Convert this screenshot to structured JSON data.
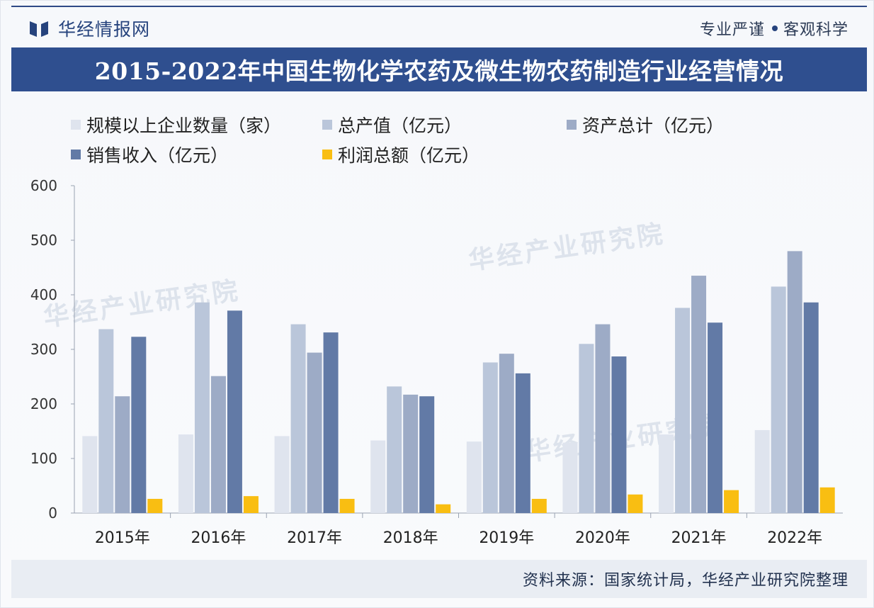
{
  "header": {
    "brand_name": "华经情报网",
    "slogan_left": "专业严谨",
    "slogan_right": "客观科学"
  },
  "watermark_text": "华经产业研究院",
  "source": "资料来源：国家统计局，华经产业研究院整理",
  "colors": {
    "brand": "#26437d",
    "title_bar": "#2f4f8f",
    "series": [
      "#dfe4ee",
      "#bac6da",
      "#9dabc6",
      "#627aa6",
      "#f9be12"
    ]
  },
  "chart_data": {
    "type": "bar",
    "title": "2015-2022年中国生物化学农药及微生物农药制造行业经营情况",
    "categories": [
      "2015年",
      "2016年",
      "2017年",
      "2018年",
      "2019年",
      "2020年",
      "2021年",
      "2022年"
    ],
    "series": [
      {
        "name": "规模以上企业数量（家）",
        "values": [
          141,
          144,
          141,
          133,
          131,
          129,
          144,
          152
        ]
      },
      {
        "name": "总产值（亿元）",
        "values": [
          337,
          386,
          346,
          232,
          276,
          310,
          376,
          415
        ]
      },
      {
        "name": "资产总计（亿元）",
        "values": [
          214,
          251,
          294,
          217,
          292,
          346,
          435,
          480
        ]
      },
      {
        "name": "销售收入（亿元）",
        "values": [
          323,
          371,
          331,
          214,
          256,
          287,
          349,
          386
        ]
      },
      {
        "name": "利润总额（亿元）",
        "values": [
          26,
          31,
          26,
          16,
          26,
          34,
          42,
          47
        ]
      }
    ],
    "yticks": [
      0,
      100,
      200,
      300,
      400,
      500,
      600
    ],
    "ylim": [
      0,
      600
    ],
    "legend_position": "top-left",
    "grid": false
  }
}
